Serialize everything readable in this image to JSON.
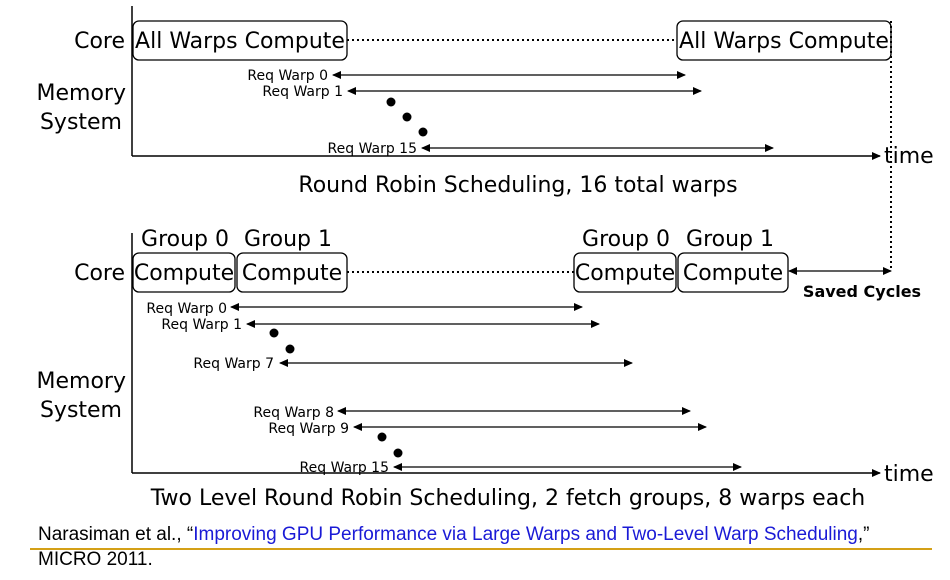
{
  "top": {
    "core_label": "Core",
    "memory_label_line1": "Memory",
    "memory_label_line2": "System",
    "box_left": "All Warps Compute",
    "box_right": "All Warps Compute",
    "req_warp_0": "Req Warp 0",
    "req_warp_1": "Req Warp 1",
    "req_warp_15": "Req Warp 15",
    "time_label": "time",
    "caption": "Round Robin Scheduling, 16 total warps"
  },
  "bottom": {
    "core_label": "Core",
    "memory_label_line1": "Memory",
    "memory_label_line2": "System",
    "group0_a": "Group 0",
    "group1_a": "Group 1",
    "group0_b": "Group 0",
    "group1_b": "Group 1",
    "compute_1": "Compute",
    "compute_2": "Compute",
    "compute_3": "Compute",
    "compute_4": "Compute",
    "saved_cycles": "Saved Cycles",
    "req_warp_0": "Req Warp 0",
    "req_warp_1": "Req Warp 1",
    "req_warp_7": "Req Warp 7",
    "req_warp_8": "Req Warp 8",
    "req_warp_9": "Req Warp 9",
    "req_warp_15": "Req Warp 15",
    "time_label": "time",
    "caption": "Two Level Round Robin Scheduling, 2 fetch groups, 8 warps each"
  },
  "citation": {
    "prefix": "Narasiman et al., “",
    "link": "Improving GPU Performance via Large Warps and Two-Level Warp Scheduling",
    "suffix": ",” MICRO 2011."
  },
  "colors": {
    "link": "#1a1ad6",
    "divider": "#d4a017"
  }
}
